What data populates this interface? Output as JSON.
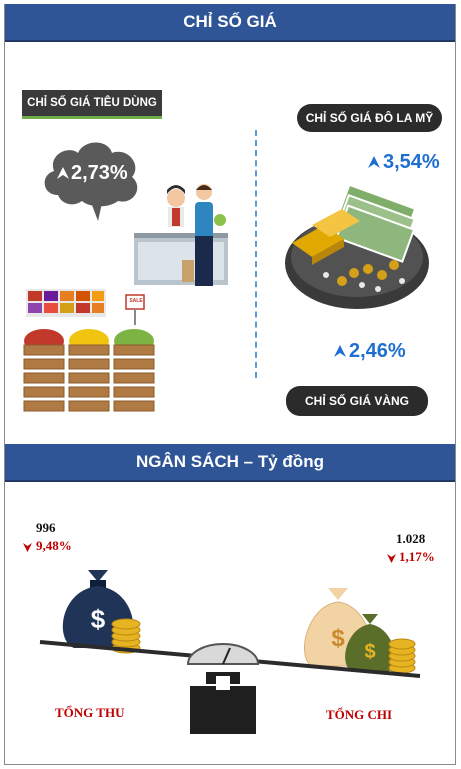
{
  "header_price": "CHỈ SỐ GIÁ",
  "cpi": {
    "label": "CHỈ SỐ GIÁ TIÊU DÙNG",
    "value": "2,73%"
  },
  "usd": {
    "label": "CHỈ SỐ GIÁ ĐÔ LA MỸ",
    "value": "3,54%"
  },
  "gold": {
    "label": "CHỈ SỐ GIÁ VÀNG",
    "value": "2,46%"
  },
  "header_budget": "NGÂN SÁCH – Tỷ đồng",
  "revenue": {
    "label": "TỔNG THU",
    "amount": "996",
    "change": "9,48%"
  },
  "expense": {
    "label": "TỔNG CHI",
    "amount": "1.028",
    "change": "1,17%"
  },
  "sale_tag": "SALE",
  "colors": {
    "header": "#2f5597",
    "blue_value": "#1f6fd1",
    "red": "#c00000"
  }
}
